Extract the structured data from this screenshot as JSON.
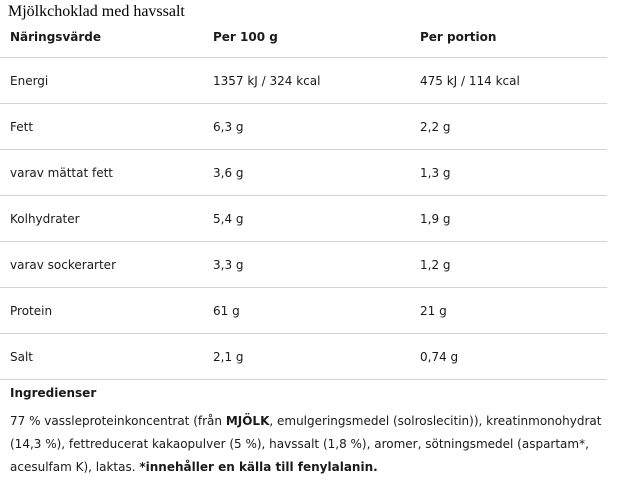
{
  "title": "Mjölkchoklad med havssalt",
  "table": {
    "header": [
      "Näringsvärde",
      "Per 100 g",
      "Per portion"
    ],
    "rows": [
      [
        "Energi",
        "1357 kJ / 324 kcal",
        "475 kJ / 114 kcal"
      ],
      [
        "Fett",
        "6,3 g",
        "2,2 g"
      ],
      [
        "varav mättat fett",
        "3,6 g",
        "1,3 g"
      ],
      [
        "Kolhydrater",
        "5,4 g",
        "1,9 g"
      ],
      [
        "varav sockerarter",
        "3,3 g",
        "1,2 g"
      ],
      [
        "Protein",
        "61 g",
        "21 g"
      ],
      [
        "Salt",
        "2,1 g",
        "0,74 g"
      ]
    ]
  },
  "ingredients": {
    "heading": "Ingredienser",
    "parts": [
      "77 % vassleproteinkoncentrat (från ",
      "MJÖLK",
      ", emulgeringsmedel (solroslecitin)), kreatinmonohydrat (14,3 %), fettreducerat kakaopulver (5 %), havssalt (1,8 %), aromer, sötningsmedel (aspartam*, acesulfam K), laktas. ",
      "*innehåller en källa till fenylalanin."
    ]
  }
}
